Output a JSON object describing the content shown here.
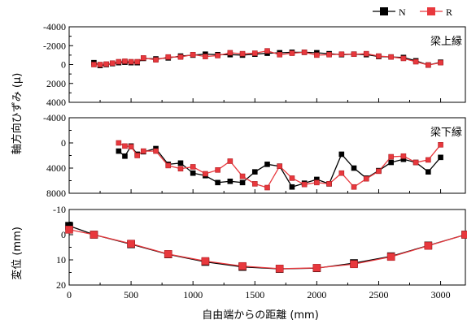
{
  "chart_data": {
    "type": "line",
    "legend": [
      {
        "name": "N",
        "color": "#000000",
        "marker": "square"
      },
      {
        "name": "R",
        "color": "#e8383d",
        "marker": "square"
      }
    ],
    "legend_position": "top-right",
    "xlabel": "自由端からの距離 (mm)",
    "xlim": [
      0,
      3200
    ],
    "xticks": [
      0,
      500,
      1000,
      1500,
      2000,
      2500,
      3000
    ],
    "grid": false,
    "shared_ylabel": "軸方向ひずみ (μ)",
    "panels": [
      {
        "id": "upper",
        "annotation": "梁上縁",
        "ylabel": "軸方向ひずみ (μ)",
        "ylim": [
          -4000,
          4000
        ],
        "yticks": [
          -4000,
          -2000,
          0,
          2000,
          4000
        ],
        "ytick_labels": [
          "-4000",
          "-2000",
          "0",
          "2000",
          "4000"
        ],
        "inverted": true,
        "series": [
          {
            "name": "N",
            "x": [
              200,
              250,
              300,
              350,
              400,
              450,
              500,
              550,
              600,
              700,
              800,
              900,
              1000,
              1100,
              1200,
              1300,
              1400,
              1500,
              1600,
              1700,
              1800,
              1900,
              2000,
              2100,
              2200,
              2300,
              2400,
              2500,
              2600,
              2700,
              2800,
              2900,
              3000
            ],
            "y": [
              -200,
              100,
              0,
              -100,
              -200,
              -250,
              -200,
              -200,
              -650,
              -600,
              -700,
              -900,
              -1000,
              -1100,
              -1050,
              -1050,
              -1000,
              -1100,
              -1200,
              -1250,
              -1300,
              -1300,
              -1250,
              -1150,
              -1050,
              -1100,
              -1050,
              -850,
              -800,
              -750,
              -400,
              50,
              -250
            ]
          },
          {
            "name": "R",
            "x": [
              200,
              250,
              300,
              350,
              400,
              450,
              500,
              550,
              600,
              700,
              800,
              900,
              1000,
              1100,
              1200,
              1300,
              1400,
              1500,
              1600,
              1700,
              1800,
              1900,
              2000,
              2100,
              2200,
              2300,
              2400,
              2500,
              2600,
              2700,
              2800,
              2900,
              3000
            ],
            "y": [
              0,
              0,
              -50,
              -150,
              -300,
              -350,
              -300,
              -300,
              -700,
              -500,
              -800,
              -800,
              -1050,
              -850,
              -950,
              -1250,
              -1150,
              -1200,
              -1450,
              -1050,
              -1200,
              -1300,
              -1000,
              -1050,
              -1100,
              -1100,
              -1150,
              -900,
              -800,
              -650,
              -300,
              50,
              -200
            ]
          }
        ]
      },
      {
        "id": "lower",
        "annotation": "梁下縁",
        "ylabel": "軸方向ひずみ (μ)",
        "ylim": [
          -4000,
          8000
        ],
        "yticks": [
          -4000,
          0,
          4000,
          8000
        ],
        "ytick_labels": [
          "-4000",
          "0",
          "4000",
          "8000"
        ],
        "inverted": true,
        "series": [
          {
            "name": "N",
            "x": [
              400,
              450,
              500,
              550,
              600,
              700,
              800,
              900,
              1000,
              1100,
              1200,
              1300,
              1400,
              1500,
              1600,
              1700,
              1800,
              1900,
              2000,
              2100,
              2200,
              2300,
              2400,
              2500,
              2600,
              2700,
              2800,
              2900,
              3000
            ],
            "y": [
              1300,
              2100,
              500,
              1800,
              1400,
              900,
              3400,
              3200,
              4800,
              5200,
              6300,
              6100,
              6300,
              4600,
              3400,
              3700,
              7000,
              6400,
              5800,
              6500,
              1800,
              4000,
              5600,
              4400,
              3100,
              2600,
              3100,
              4600,
              2300
            ]
          },
          {
            "name": "R",
            "x": [
              400,
              450,
              500,
              550,
              600,
              700,
              800,
              900,
              1000,
              1100,
              1200,
              1300,
              1400,
              1500,
              1600,
              1700,
              1800,
              1900,
              2000,
              2100,
              2200,
              2300,
              2400,
              2500,
              2600,
              2700,
              2800,
              2900,
              3000
            ],
            "y": [
              0,
              500,
              600,
              2000,
              1300,
              1300,
              3600,
              4100,
              3800,
              4900,
              4300,
              2900,
              5300,
              6500,
              7100,
              3700,
              5600,
              6600,
              6300,
              6500,
              4800,
              7000,
              5700,
              4500,
              2200,
              2100,
              3100,
              2700,
              300
            ]
          }
        ]
      },
      {
        "id": "deflection",
        "annotation": "",
        "ylabel": "変位 (mm)",
        "ylim": [
          -10,
          20
        ],
        "yticks": [
          -10,
          0,
          10,
          20
        ],
        "ytick_labels": [
          "-10",
          "0",
          "10",
          "20"
        ],
        "inverted": true,
        "series": [
          {
            "name": "N",
            "x": [
              0,
              200,
              500,
              800,
              1100,
              1400,
              1700,
              2000,
              2300,
              2600,
              2900,
              3200
            ],
            "y": [
              -3.5,
              0,
              3.8,
              7.8,
              10.8,
              12.8,
              13.6,
              13.3,
              11.3,
              8.6,
              4.3,
              0
            ]
          },
          {
            "name": "R",
            "x": [
              0,
              200,
              500,
              800,
              1100,
              1400,
              1700,
              2000,
              2300,
              2600,
              2900,
              3200
            ],
            "y": [
              -2,
              0,
              3.6,
              7.7,
              10.5,
              12.5,
              13.5,
              13.2,
              11.7,
              8.8,
              4.4,
              0
            ]
          }
        ]
      }
    ]
  }
}
